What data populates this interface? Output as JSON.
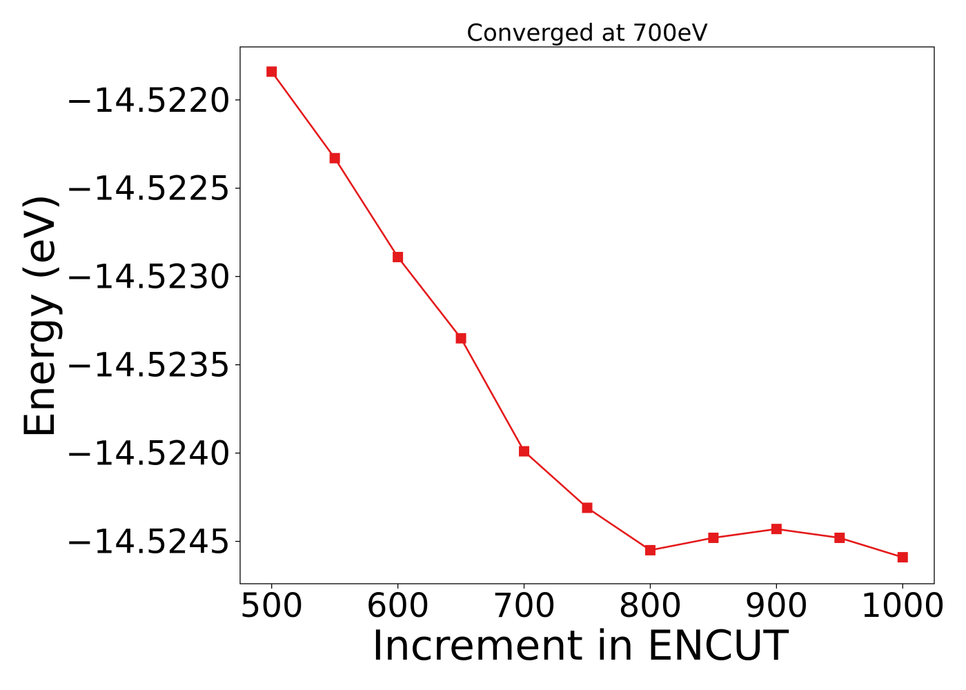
{
  "chart_data": {
    "type": "line",
    "title": "Converged at 700eV",
    "xlabel": "Increment in ENCUT",
    "ylabel": "Energy (eV)",
    "x": [
      500,
      550,
      600,
      650,
      700,
      750,
      800,
      850,
      900,
      950,
      1000
    ],
    "series": [
      {
        "values": [
          -14.52184,
          -14.52233,
          -14.52289,
          -14.52335,
          -14.52399,
          -14.52431,
          -14.52455,
          -14.52448,
          -14.52443,
          -14.52448,
          -14.52459
        ],
        "color": "#e41a1c",
        "marker": "square"
      }
    ],
    "xlim": [
      475,
      1025
    ],
    "ylim": [
      -14.52474,
      -14.5217
    ],
    "xticks": [
      500,
      600,
      700,
      800,
      900,
      1000
    ],
    "xtick_labels": [
      "500",
      "600",
      "700",
      "800",
      "900",
      "1000"
    ],
    "yticks": [
      -14.522,
      -14.5225,
      -14.523,
      -14.5235,
      -14.524,
      -14.5245
    ],
    "ytick_labels": [
      "−14.5220",
      "−14.5225",
      "−14.5230",
      "−14.5235",
      "−14.5240",
      "−14.5245"
    ],
    "grid": false,
    "legend": "none"
  }
}
